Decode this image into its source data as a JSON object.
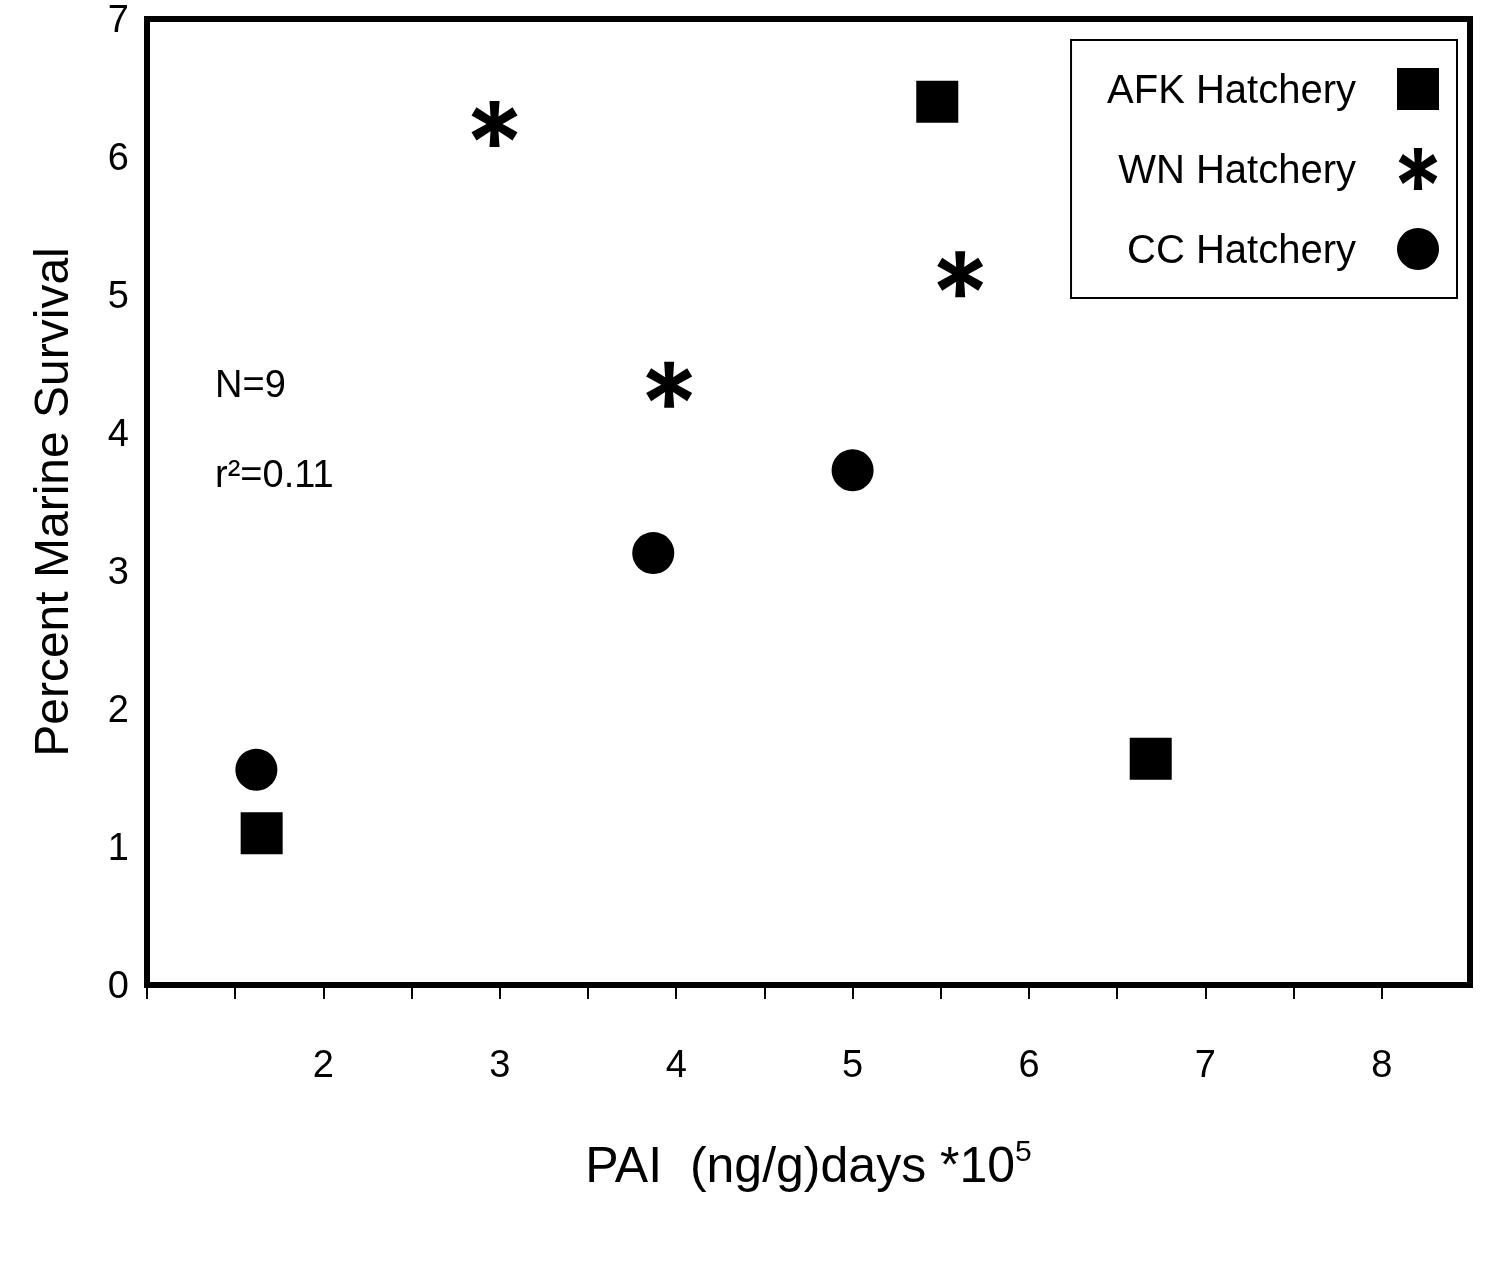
{
  "chart_data": {
    "type": "scatter",
    "xlabel": "PAI  (ng/g)days *10$^{5}$",
    "ylabel": "Percent Marine Survival",
    "series": [
      {
        "name": "AFK Hatchery",
        "color": "#000000",
        "marker": "square",
        "x": [
          1.65,
          5.48,
          6.69
        ],
        "values": [
          1.1,
          6.4,
          1.64
        ]
      },
      {
        "name": "WN Hatchery",
        "color": "#000000",
        "marker": "star",
        "x": [
          2.97,
          3.96,
          5.61
        ],
        "values": [
          6.24,
          4.35,
          5.15
        ]
      },
      {
        "name": "CC Hatchery",
        "color": "#000000",
        "marker": "circle",
        "x": [
          1.62,
          3.87,
          5.0
        ],
        "values": [
          1.56,
          3.13,
          3.73
        ]
      }
    ],
    "annotations": [
      "N=9",
      "r²=0.11"
    ],
    "xlim": [
      1,
      8.5
    ],
    "xticks": [
      {
        "value": 1,
        "label": null
      },
      {
        "value": 1.5,
        "label": null
      },
      2,
      {
        "value": 2.5,
        "label": null
      },
      3,
      {
        "value": 3.5,
        "label": null
      },
      4,
      {
        "value": 4.5,
        "label": null
      },
      5,
      {
        "value": 5.5,
        "label": null
      },
      6,
      {
        "value": 6.5,
        "label": null
      },
      7,
      {
        "value": 7.5,
        "label": null
      },
      8
    ],
    "ylim": [
      0,
      7
    ],
    "yticks": [
      0,
      1,
      2,
      3,
      4,
      5,
      6,
      7
    ],
    "grid": false,
    "legend": "top right"
  }
}
